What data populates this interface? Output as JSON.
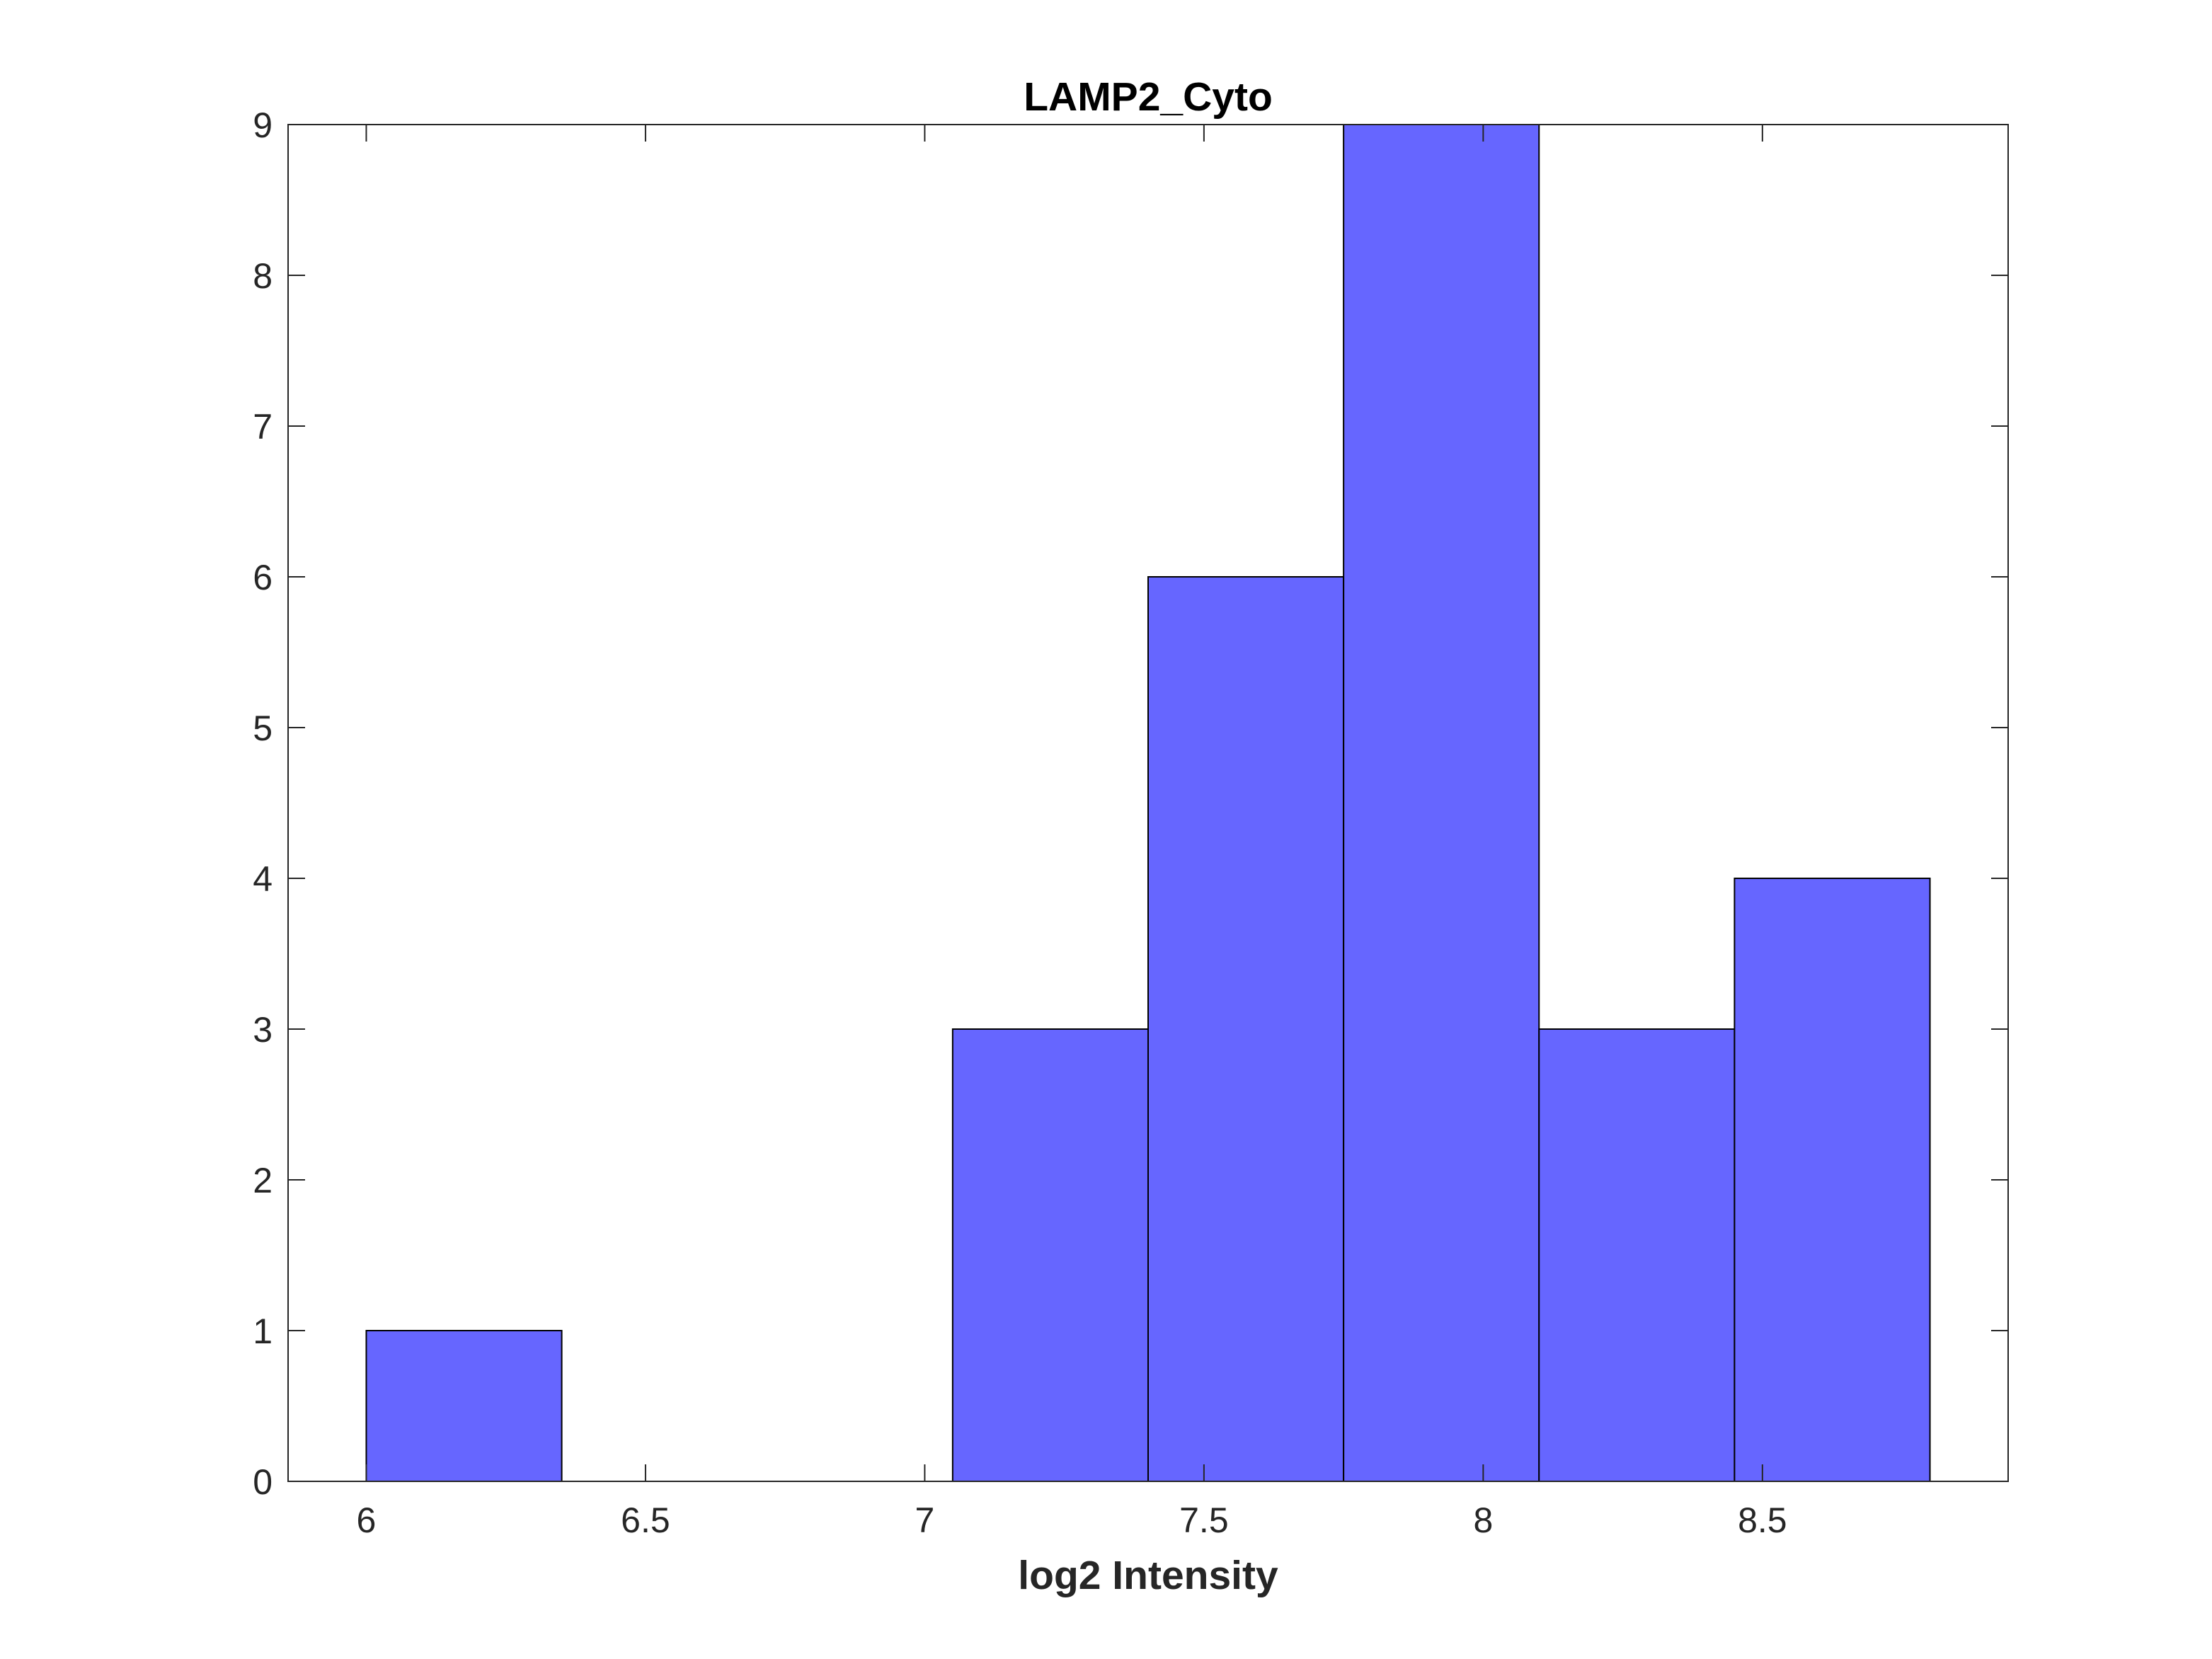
{
  "chart_data": {
    "type": "bar",
    "title": "LAMP2_Cyto",
    "xlabel": "log2 Intensity",
    "ylabel": "",
    "bin_edges": [
      6.0,
      6.35,
      6.7,
      7.05,
      7.4,
      7.75,
      8.1,
      8.45,
      8.8
    ],
    "values": [
      1,
      0,
      0,
      3,
      6,
      9,
      3,
      4
    ],
    "xlim": [
      5.86,
      8.94
    ],
    "ylim": [
      0,
      9
    ],
    "xticks": [
      6,
      6.5,
      7,
      7.5,
      8,
      8.5
    ],
    "xtick_labels": [
      "6",
      "6.5",
      "7",
      "7.5",
      "8",
      "8.5"
    ],
    "yticks": [
      0,
      1,
      2,
      3,
      4,
      5,
      6,
      7,
      8,
      9
    ],
    "ytick_labels": [
      "0",
      "1",
      "2",
      "3",
      "4",
      "5",
      "6",
      "7",
      "8",
      "9"
    ],
    "grid": false,
    "bar_color": "#6666ff",
    "edge_color": "#000000"
  }
}
